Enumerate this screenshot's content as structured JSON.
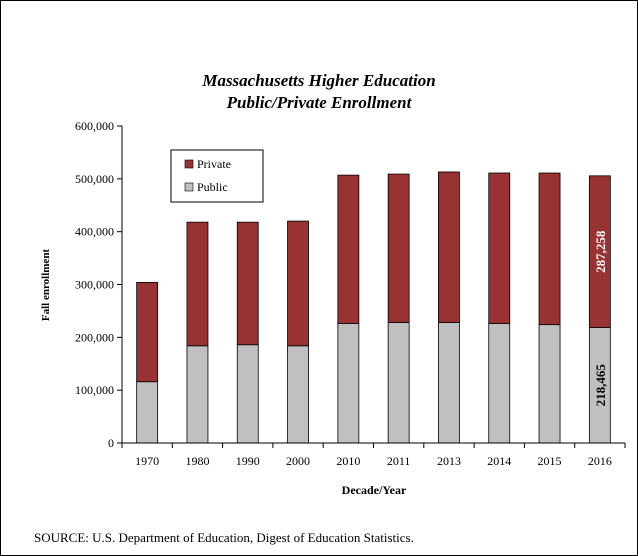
{
  "chart_data": {
    "type": "bar",
    "stacked": true,
    "title": "Massachusetts Higher Education",
    "subtitle": "Public/Private Enrollment",
    "xlabel": "Decade/Year",
    "ylabel": "Fall enrollment",
    "ylim": [
      0,
      600000
    ],
    "yticks": [
      "0",
      "100,000",
      "200,000",
      "300,000",
      "400,000",
      "500,000",
      "600,000"
    ],
    "categories": [
      "1970",
      "1980",
      "1990",
      "2000",
      "2010",
      "2011",
      "2013",
      "2014",
      "2015",
      "2016"
    ],
    "series": [
      {
        "name": "Public",
        "color": "#c0c0c0",
        "values": [
          116000,
          184000,
          186000,
          184000,
          226000,
          228000,
          228000,
          226000,
          224000,
          218465
        ]
      },
      {
        "name": "Private",
        "color": "#993333",
        "values": [
          188000,
          234000,
          232000,
          236000,
          281000,
          281000,
          285000,
          285000,
          287000,
          287258
        ]
      }
    ],
    "data_labels": [
      {
        "category": "2016",
        "series": "Public",
        "text": "218,465"
      },
      {
        "category": "2016",
        "series": "Private",
        "text": "287,258"
      }
    ],
    "legend": {
      "position": "top-left",
      "items": [
        "Private",
        "Public"
      ]
    },
    "grid": false
  },
  "source_note": "SOURCE: U.S. Department of Education, Digest of Education Statistics."
}
